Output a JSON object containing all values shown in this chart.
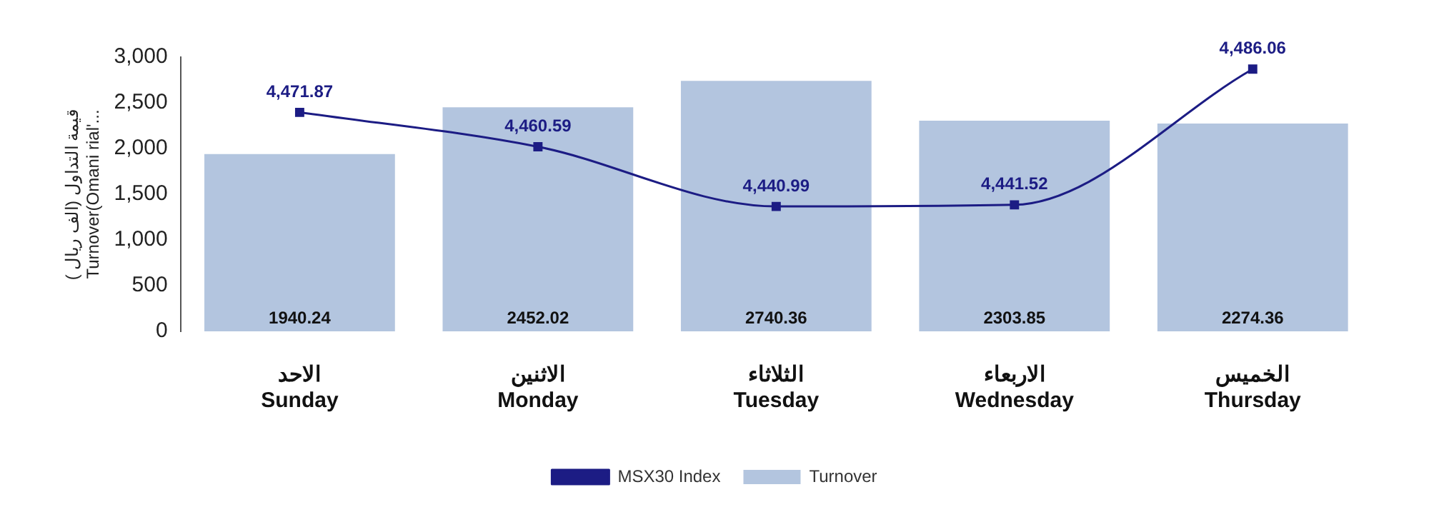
{
  "chart_data": {
    "type": "bar",
    "ylabel": "( قيمة التداول (الف ريال\nTurnover(Omani rial'...",
    "categories": [
      "الاحد\nSunday",
      "الاثنين\nMonday",
      "الثلاثاء\nTuesday",
      "الاربعاء\nWednesday",
      "الخميس\nThursday"
    ],
    "series": [
      {
        "name": "MSX30 Index",
        "type": "line",
        "axis": "y2",
        "color": "#1c1c84",
        "values": [
          4471.87,
          4460.59,
          4440.99,
          4441.52,
          4486.06
        ],
        "value_labels": [
          "4,471.87",
          "4,460.59",
          "4,440.99",
          "4,441.52",
          "4,486.06"
        ]
      },
      {
        "name": "Turnover",
        "color": "#b3c5df",
        "values": [
          1940.24,
          2452.02,
          2740.36,
          2303.85,
          2274.36
        ],
        "value_labels": [
          "1940.24",
          "2452.02",
          "2740.36",
          "2303.85",
          "2274.36"
        ]
      }
    ],
    "ylim": [
      0,
      3000
    ],
    "yticks": [
      0,
      500,
      {
        "value": 1000,
        "label": "1,000"
      },
      {
        "value": 1500,
        "label": "1,500"
      },
      {
        "value": 2000,
        "label": "2,000"
      },
      {
        "value": 2500,
        "label": "2,500"
      },
      {
        "value": 3000,
        "label": "3,000"
      }
    ],
    "y2lim": [
      4400,
      4490
    ],
    "grid": false,
    "marker": "square",
    "legend": "bottom"
  }
}
